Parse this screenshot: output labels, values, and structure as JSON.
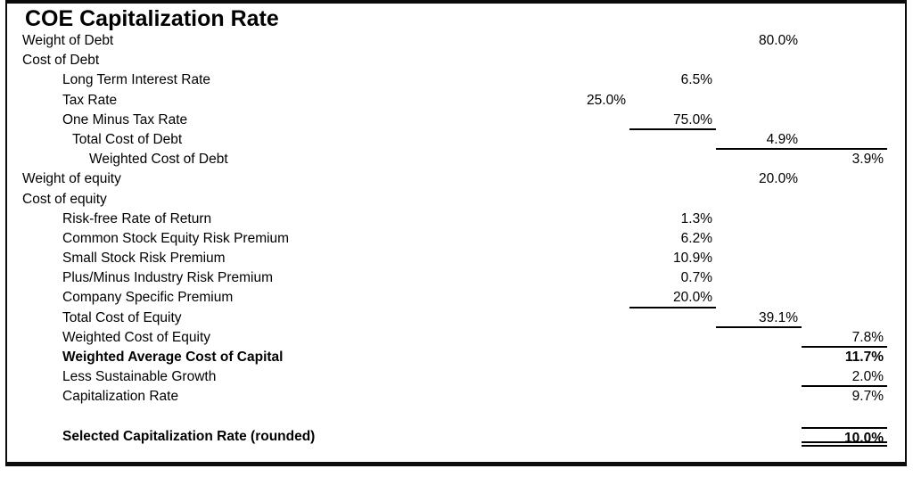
{
  "title": "COE Capitalization Rate",
  "table": {
    "rows": [
      {
        "label": "Weight of Debt",
        "indent": 0,
        "values": {
          "d": "80.0%"
        }
      },
      {
        "label": "Cost of Debt",
        "indent": 0,
        "values": {}
      },
      {
        "label": "Long Term Interest Rate",
        "indent": 1,
        "values": {
          "c": "6.5%"
        }
      },
      {
        "label": "Tax Rate",
        "indent": 1,
        "values": {
          "b": "25.0%"
        }
      },
      {
        "label": "One Minus Tax Rate",
        "indent": 1,
        "values": {
          "c": "75.0%"
        },
        "underline": [
          "c"
        ]
      },
      {
        "label": "Total Cost of Debt",
        "indent": 2,
        "values": {
          "d": "4.9%"
        },
        "underline": [
          "d",
          "e"
        ]
      },
      {
        "label": "Weighted Cost of Debt",
        "indent": 3,
        "values": {
          "e": "3.9%"
        }
      },
      {
        "label": "Weight of equity",
        "indent": 0,
        "values": {
          "d": "20.0%"
        }
      },
      {
        "label": "Cost of equity",
        "indent": 0,
        "values": {}
      },
      {
        "label": "Risk-free Rate of Return",
        "indent": 1,
        "values": {
          "c": "1.3%"
        }
      },
      {
        "label": "Common Stock Equity Risk Premium",
        "indent": 1,
        "values": {
          "c": "6.2%"
        }
      },
      {
        "label": "Small Stock Risk Premium",
        "indent": 1,
        "values": {
          "c": "10.9%"
        }
      },
      {
        "label": "Plus/Minus Industry Risk Premium",
        "indent": 1,
        "values": {
          "c": "0.7%"
        }
      },
      {
        "label": "Company Specific Premium",
        "indent": 1,
        "values": {
          "c": "20.0%"
        },
        "underline": [
          "c"
        ]
      },
      {
        "label": "Total Cost of Equity",
        "indent": 1,
        "values": {
          "d": "39.1%"
        },
        "underline": [
          "d"
        ]
      },
      {
        "label": "Weighted Cost of Equity",
        "indent": 1,
        "values": {
          "e": "7.8%"
        },
        "underline": [
          "e"
        ]
      },
      {
        "label": "Weighted Average Cost of Capital",
        "indent": 1,
        "bold": true,
        "values": {
          "e": "11.7%"
        }
      },
      {
        "label": "Less Sustainable Growth",
        "indent": 1,
        "values": {
          "e": "2.0%"
        },
        "underline": [
          "e"
        ]
      },
      {
        "label": "Capitalization Rate",
        "indent": 1,
        "values": {
          "e": "9.7%"
        }
      },
      {
        "label": "",
        "indent": 0,
        "values": {}
      },
      {
        "label": "Selected Capitalization Rate (rounded)",
        "indent": 1,
        "bold": true,
        "values": {
          "e": "10.0%"
        },
        "topline": [
          "e"
        ],
        "double_underline": [
          "e"
        ]
      }
    ]
  }
}
